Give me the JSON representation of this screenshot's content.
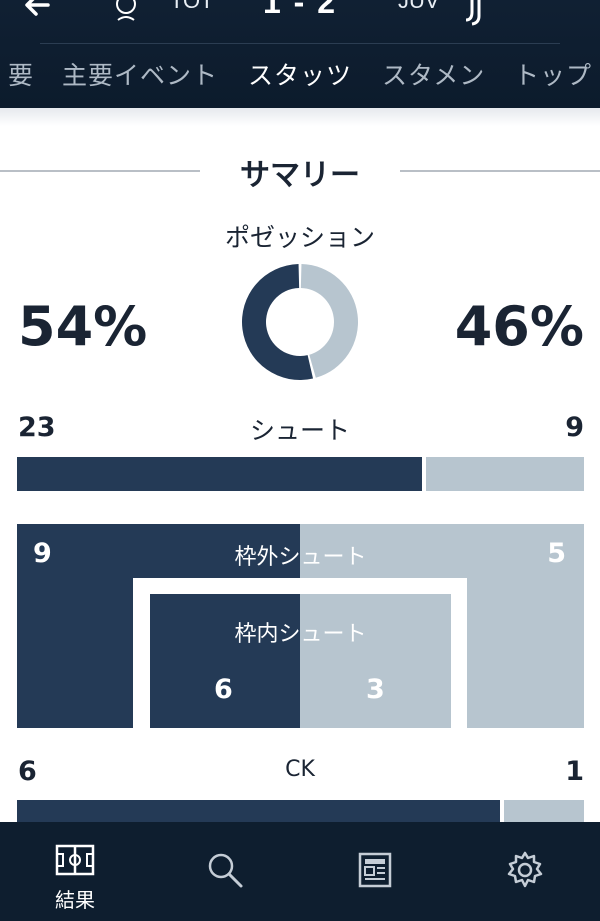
{
  "match": {
    "home_abbr": "TOT",
    "away_abbr": "JUV",
    "score": "1 - 2"
  },
  "tabs": [
    {
      "label": "要"
    },
    {
      "label": "主要イベント"
    },
    {
      "label": "スタッツ",
      "active": true
    },
    {
      "label": "スタメン"
    },
    {
      "label": "トップ"
    }
  ],
  "summary": {
    "title": "サマリー",
    "possession": {
      "label": "ポゼッション",
      "home_text": "54%",
      "away_text": "46%",
      "home_value": 54,
      "away_value": 46
    },
    "shots": {
      "label": "シュート",
      "home": "23",
      "away": "9"
    },
    "shots_off_target": {
      "label": "枠外シュート",
      "home": "9",
      "away": "5"
    },
    "shots_on_target": {
      "label": "枠内シュート",
      "home": "6",
      "away": "3"
    },
    "corners": {
      "label": "CK",
      "home": "6",
      "away": "1"
    }
  },
  "colors": {
    "home": "#243a56",
    "away": "#b7c5cf",
    "header_bg": "#0c1b2c"
  },
  "bottom_nav": [
    {
      "icon": "pitch-icon",
      "label": "結果",
      "active": true
    },
    {
      "icon": "search-icon",
      "label": ""
    },
    {
      "icon": "news-icon",
      "label": ""
    },
    {
      "icon": "gear-icon",
      "label": ""
    }
  ]
}
